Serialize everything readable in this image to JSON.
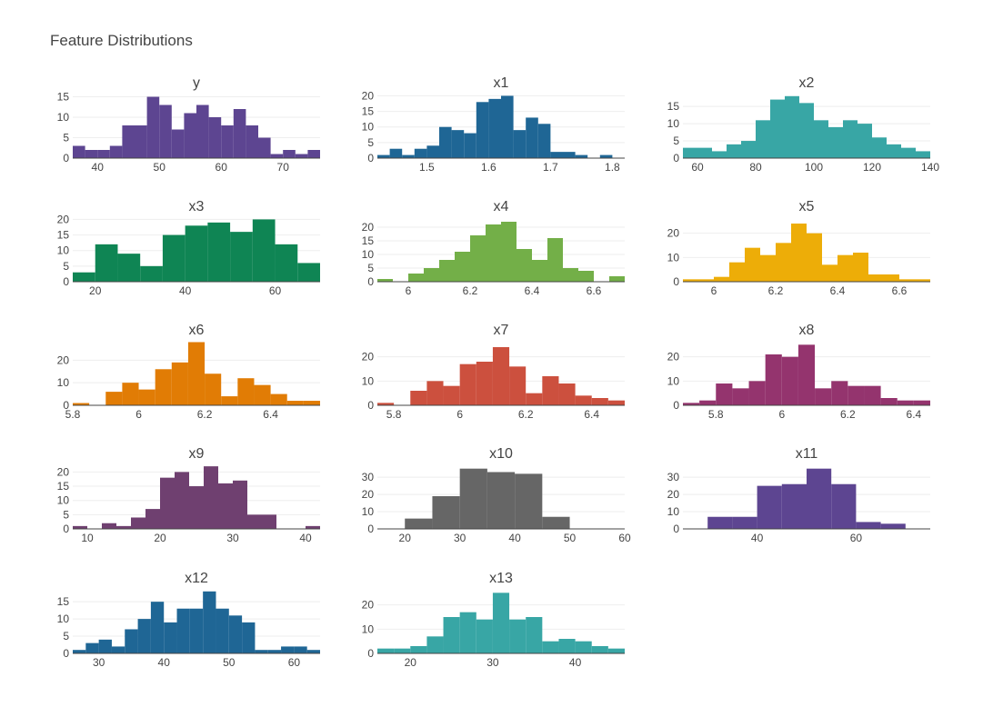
{
  "figure": {
    "title": "Feature Distributions"
  },
  "chart_data": [
    {
      "type": "bar",
      "title": "y",
      "color": "#5D4591",
      "x_range": [
        36,
        76
      ],
      "y_range": [
        0,
        16
      ],
      "x_ticks": [
        40,
        50,
        60,
        70
      ],
      "x_tick_labels": [
        "40",
        "50",
        "60",
        "70"
      ],
      "y_ticks": [
        0,
        5,
        10,
        15
      ],
      "y_tick_labels": [
        "0",
        "5",
        "10",
        "15"
      ],
      "bin_start": 36,
      "bin_width": 2,
      "counts": [
        3,
        2,
        2,
        3,
        8,
        8,
        15,
        13,
        7,
        11,
        13,
        10,
        8,
        12,
        8,
        5,
        1,
        2,
        1,
        2
      ]
    },
    {
      "type": "bar",
      "title": "x1",
      "color": "#1F6695",
      "x_range": [
        1.42,
        1.82
      ],
      "y_range": [
        0,
        21
      ],
      "x_ticks": [
        1.5,
        1.6,
        1.7,
        1.8
      ],
      "x_tick_labels": [
        "1.5",
        "1.6",
        "1.7",
        "1.8"
      ],
      "y_ticks": [
        0,
        5,
        10,
        15,
        20
      ],
      "y_tick_labels": [
        "0",
        "5",
        "10",
        "15",
        "20"
      ],
      "bin_start": 1.42,
      "bin_width": 0.02,
      "counts": [
        1,
        3,
        1,
        3,
        4,
        10,
        9,
        8,
        18,
        19,
        20,
        9,
        13,
        11,
        2,
        2,
        1,
        0,
        1
      ]
    },
    {
      "type": "bar",
      "title": "x2",
      "color": "#38A6A5",
      "x_range": [
        55,
        140
      ],
      "y_range": [
        0,
        19
      ],
      "x_ticks": [
        60,
        80,
        100,
        120,
        140
      ],
      "x_tick_labels": [
        "60",
        "80",
        "100",
        "120",
        "140"
      ],
      "y_ticks": [
        0,
        5,
        10,
        15
      ],
      "y_tick_labels": [
        "0",
        "5",
        "10",
        "15"
      ],
      "bin_start": 55,
      "bin_width": 5,
      "counts": [
        3,
        3,
        2,
        4,
        5,
        11,
        17,
        18,
        16,
        11,
        9,
        11,
        10,
        6,
        4,
        3,
        2
      ]
    },
    {
      "type": "bar",
      "title": "x3",
      "color": "#0F8554",
      "x_range": [
        15,
        70
      ],
      "y_range": [
        0,
        21
      ],
      "x_ticks": [
        20,
        40,
        60
      ],
      "x_tick_labels": [
        "20",
        "40",
        "60"
      ],
      "y_ticks": [
        0,
        5,
        10,
        15,
        20
      ],
      "y_tick_labels": [
        "0",
        "5",
        "10",
        "15",
        "20"
      ],
      "bin_start": 15,
      "bin_width": 5,
      "counts": [
        3,
        12,
        9,
        5,
        15,
        18,
        19,
        16,
        20,
        12,
        6
      ]
    },
    {
      "type": "bar",
      "title": "x4",
      "color": "#73AF48",
      "x_range": [
        5.9,
        6.7
      ],
      "y_range": [
        0,
        24
      ],
      "x_ticks": [
        6.0,
        6.2,
        6.4,
        6.6
      ],
      "x_tick_labels": [
        "6",
        "6.2",
        "6.4",
        "6.6"
      ],
      "y_ticks": [
        0,
        5,
        10,
        15,
        20
      ],
      "y_tick_labels": [
        "0",
        "5",
        "10",
        "15",
        "20"
      ],
      "bin_start": 5.9,
      "bin_width": 0.05,
      "counts": [
        1,
        0,
        3,
        5,
        8,
        11,
        17,
        21,
        22,
        12,
        8,
        16,
        5,
        4,
        0,
        2
      ]
    },
    {
      "type": "bar",
      "title": "x5",
      "color": "#EDAD08",
      "x_range": [
        5.9,
        6.7
      ],
      "y_range": [
        0,
        27
      ],
      "x_ticks": [
        6.0,
        6.2,
        6.4,
        6.6
      ],
      "x_tick_labels": [
        "6",
        "6.2",
        "6.4",
        "6.6"
      ],
      "y_ticks": [
        0,
        10,
        20
      ],
      "y_tick_labels": [
        "0",
        "10",
        "20"
      ],
      "bin_start": 5.9,
      "bin_width": 0.05,
      "counts": [
        1,
        1,
        2,
        8,
        14,
        11,
        16,
        24,
        20,
        7,
        11,
        12,
        3,
        3,
        1,
        1
      ]
    },
    {
      "type": "bar",
      "title": "x6",
      "color": "#E17C05",
      "x_range": [
        5.8,
        6.55
      ],
      "y_range": [
        0,
        29
      ],
      "x_ticks": [
        5.8,
        6.0,
        6.2,
        6.4
      ],
      "x_tick_labels": [
        "5.8",
        "6",
        "6.2",
        "6.4"
      ],
      "y_ticks": [
        0,
        10,
        20
      ],
      "y_tick_labels": [
        "0",
        "10",
        "20"
      ],
      "bin_start": 5.8,
      "bin_width": 0.05,
      "counts": [
        1,
        0,
        6,
        10,
        7,
        16,
        19,
        28,
        14,
        4,
        12,
        9,
        5,
        2,
        2
      ]
    },
    {
      "type": "bar",
      "title": "x7",
      "color": "#CC503E",
      "x_range": [
        5.75,
        6.5
      ],
      "y_range": [
        0,
        27
      ],
      "x_ticks": [
        5.8,
        6.0,
        6.2,
        6.4
      ],
      "x_tick_labels": [
        "5.8",
        "6",
        "6.2",
        "6.4"
      ],
      "y_ticks": [
        0,
        10,
        20
      ],
      "y_tick_labels": [
        "0",
        "10",
        "20"
      ],
      "bin_start": 5.75,
      "bin_width": 0.05,
      "counts": [
        1,
        0,
        6,
        10,
        8,
        17,
        18,
        24,
        16,
        5,
        12,
        9,
        4,
        3,
        2
      ]
    },
    {
      "type": "bar",
      "title": "x8",
      "color": "#94346E",
      "x_range": [
        5.7,
        6.45
      ],
      "y_range": [
        0,
        27
      ],
      "x_ticks": [
        5.8,
        6.0,
        6.2,
        6.4
      ],
      "x_tick_labels": [
        "5.8",
        "6",
        "6.2",
        "6.4"
      ],
      "y_ticks": [
        0,
        10,
        20
      ],
      "y_tick_labels": [
        "0",
        "10",
        "20"
      ],
      "bin_start": 5.7,
      "bin_width": 0.05,
      "counts": [
        1,
        2,
        9,
        7,
        10,
        21,
        20,
        25,
        7,
        10,
        8,
        8,
        3,
        2,
        2
      ]
    },
    {
      "type": "bar",
      "title": "x9",
      "color": "#6F4070",
      "x_range": [
        8,
        42
      ],
      "y_range": [
        0,
        23
      ],
      "x_ticks": [
        10,
        20,
        30,
        40
      ],
      "x_tick_labels": [
        "10",
        "20",
        "30",
        "40"
      ],
      "y_ticks": [
        0,
        5,
        10,
        15,
        20
      ],
      "y_tick_labels": [
        "0",
        "5",
        "10",
        "15",
        "20"
      ],
      "bin_start": 8,
      "bin_width": 2,
      "counts": [
        1,
        0,
        2,
        1,
        4,
        7,
        18,
        20,
        15,
        22,
        16,
        17,
        5,
        5,
        0,
        0,
        1
      ]
    },
    {
      "type": "bar",
      "title": "x10",
      "color": "#666666",
      "x_range": [
        15,
        60
      ],
      "y_range": [
        0,
        38
      ],
      "x_ticks": [
        20,
        30,
        40,
        50,
        60
      ],
      "x_tick_labels": [
        "20",
        "30",
        "40",
        "50",
        "60"
      ],
      "y_ticks": [
        0,
        10,
        20,
        30
      ],
      "y_tick_labels": [
        "0",
        "10",
        "20",
        "30"
      ],
      "bin_start": 15,
      "bin_width": 5,
      "counts": [
        0,
        6,
        19,
        35,
        33,
        32,
        7,
        0,
        0
      ]
    },
    {
      "type": "bar",
      "title": "x11",
      "color": "#5D4591",
      "x_range": [
        25,
        75
      ],
      "y_range": [
        0,
        38
      ],
      "x_ticks": [
        40,
        60
      ],
      "x_tick_labels": [
        "40",
        "60"
      ],
      "y_ticks": [
        0,
        10,
        20,
        30
      ],
      "y_tick_labels": [
        "0",
        "10",
        "20",
        "30"
      ],
      "bin_start": 25,
      "bin_width": 5,
      "counts": [
        0,
        7,
        7,
        25,
        26,
        35,
        26,
        4,
        3,
        0
      ]
    },
    {
      "type": "bar",
      "title": "x12",
      "color": "#1F6695",
      "x_range": [
        26,
        64
      ],
      "y_range": [
        0,
        19
      ],
      "x_ticks": [
        30,
        40,
        50,
        60
      ],
      "x_tick_labels": [
        "30",
        "40",
        "50",
        "60"
      ],
      "y_ticks": [
        0,
        5,
        10,
        15
      ],
      "y_tick_labels": [
        "0",
        "5",
        "10",
        "15"
      ],
      "bin_start": 26,
      "bin_width": 2,
      "counts": [
        1,
        3,
        4,
        2,
        7,
        10,
        15,
        9,
        13,
        13,
        18,
        13,
        11,
        9,
        1,
        1,
        2,
        2,
        1
      ]
    },
    {
      "type": "bar",
      "title": "x13",
      "color": "#38A6A5",
      "x_range": [
        16,
        46
      ],
      "y_range": [
        0,
        27
      ],
      "x_ticks": [
        20,
        30,
        40
      ],
      "x_tick_labels": [
        "20",
        "30",
        "40"
      ],
      "y_ticks": [
        0,
        10,
        20
      ],
      "y_tick_labels": [
        "0",
        "10",
        "20"
      ],
      "bin_start": 16,
      "bin_width": 2,
      "counts": [
        2,
        2,
        3,
        7,
        15,
        17,
        14,
        25,
        14,
        15,
        5,
        6,
        5,
        3,
        2
      ]
    }
  ]
}
